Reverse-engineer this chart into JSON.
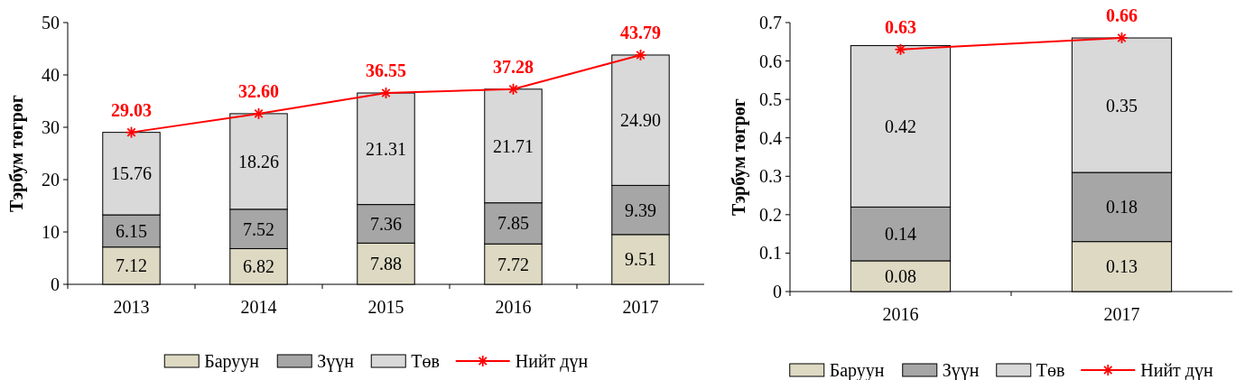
{
  "chart_data": [
    {
      "type": "bar",
      "stacked": true,
      "categories": [
        "2013",
        "2014",
        "2015",
        "2016",
        "2017"
      ],
      "ylabel": "Тэрбум төгрөг",
      "ylim": [
        0,
        50
      ],
      "yticks": [
        0,
        10,
        20,
        30,
        40,
        50
      ],
      "legend": "bottom",
      "marker": "cross",
      "series": [
        {
          "name": "Баруун",
          "color": "#ddd9c3",
          "values": [
            7.12,
            6.82,
            7.88,
            7.72,
            9.51
          ],
          "value_labels": [
            "7.12",
            "6.82",
            "7.88",
            "7.72",
            "9.51"
          ]
        },
        {
          "name": "Зүүн",
          "color": "#a6a6a6",
          "values": [
            6.15,
            7.52,
            7.36,
            7.85,
            9.39
          ],
          "value_labels": [
            "6.15",
            "7.52",
            "7.36",
            "7.85",
            "9.39"
          ]
        },
        {
          "name": "Төв",
          "color": "#d9d9d9",
          "values": [
            15.76,
            18.26,
            21.31,
            21.71,
            24.9
          ],
          "value_labels": [
            "15.76",
            "18.26",
            "21.31",
            "21.71",
            "24.90"
          ]
        },
        {
          "name": "Нийт дүн",
          "type": "line",
          "color": "#ff0000",
          "values": [
            29.03,
            32.6,
            36.55,
            37.28,
            43.79
          ],
          "value_labels": [
            "29.03",
            "32.60",
            "36.55",
            "37.28",
            "43.79"
          ]
        }
      ]
    },
    {
      "type": "bar",
      "stacked": true,
      "categories": [
        "2016",
        "2017"
      ],
      "ylabel": "Тэрбум төгрөг",
      "ylim": [
        0,
        0.7
      ],
      "yticks": [
        0,
        0.1,
        0.2,
        0.3,
        0.4,
        0.5,
        0.6,
        0.7
      ],
      "legend": "bottom",
      "marker": "cross",
      "series": [
        {
          "name": "Баруун",
          "color": "#ddd9c3",
          "values": [
            0.08,
            0.13
          ],
          "value_labels": [
            "0.08",
            "0.13"
          ]
        },
        {
          "name": "Зүүн",
          "color": "#a6a6a6",
          "values": [
            0.14,
            0.18
          ],
          "value_labels": [
            "0.14",
            "0.18"
          ]
        },
        {
          "name": "Төв",
          "color": "#d9d9d9",
          "values": [
            0.42,
            0.35
          ],
          "value_labels": [
            "0.42",
            "0.35"
          ]
        },
        {
          "name": "Нийт дүн",
          "type": "line",
          "color": "#ff0000",
          "values": [
            0.63,
            0.66
          ],
          "value_labels": [
            "0.63",
            "0.66"
          ]
        }
      ]
    }
  ]
}
